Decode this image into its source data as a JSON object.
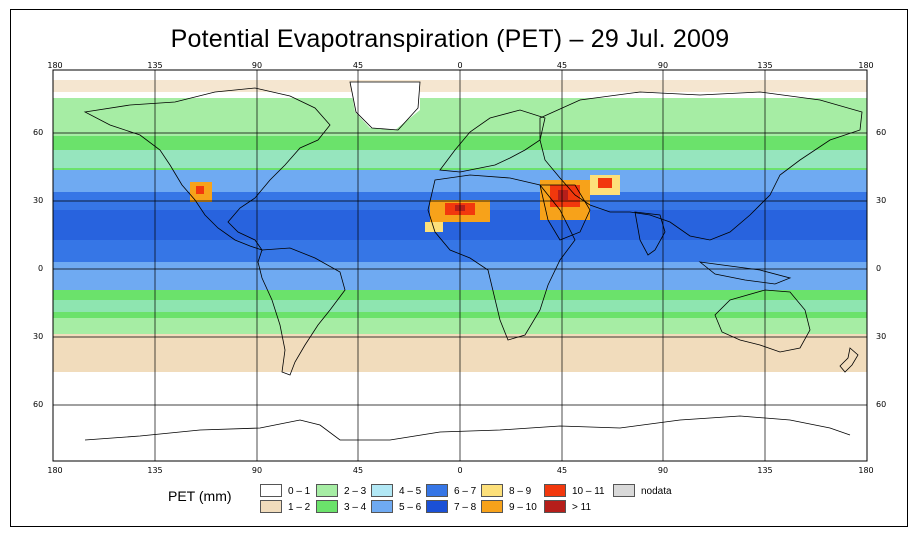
{
  "title": "Potential Evapotranspiration (PET) – 29 Jul. 2009",
  "axes": {
    "lon_ticks": [
      "180",
      "135",
      "90",
      "45",
      "0",
      "45",
      "90",
      "135",
      "180"
    ],
    "lat_ticks_left": [
      "60",
      "30",
      "0",
      "30",
      "60"
    ],
    "lat_ticks_right": [
      "60",
      "30",
      "0",
      "30",
      "60"
    ]
  },
  "legend": {
    "title": "PET (mm)",
    "classes": [
      {
        "label": "0 – 1",
        "color": "#ffffff"
      },
      {
        "label": "1 – 2",
        "color": "#f1dcbc"
      },
      {
        "label": "2 – 3",
        "color": "#a6eda4"
      },
      {
        "label": "3 – 4",
        "color": "#6be26b"
      },
      {
        "label": "4 – 5",
        "color": "#b2e8f5"
      },
      {
        "label": "5 – 6",
        "color": "#6faaf2"
      },
      {
        "label": "6 – 7",
        "color": "#3676e6"
      },
      {
        "label": "7 – 8",
        "color": "#1a50d6"
      },
      {
        "label": "8 – 9",
        "color": "#fde07a"
      },
      {
        "label": "9 – 10",
        "color": "#f7a21a"
      },
      {
        "label": "10 – 11",
        "color": "#f2380d"
      },
      {
        "label": "> 11",
        "color": "#b51e1a"
      },
      {
        "label": "nodata",
        "color": "#d9d9d9"
      }
    ]
  },
  "colors": {
    "frame": "#000000",
    "grid": "#000000",
    "coast": "#000000"
  }
}
